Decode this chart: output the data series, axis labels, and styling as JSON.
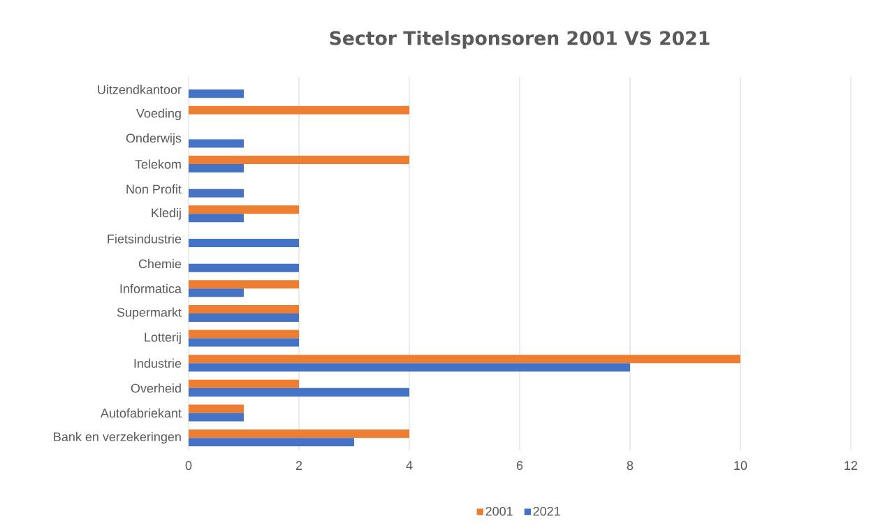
{
  "chart_data": {
    "type": "bar",
    "orientation": "horizontal",
    "title": "Sector Titelsponsoren 2001 VS 2021",
    "categories": [
      "Uitzendkantoor",
      "Voeding",
      "Onderwijs",
      "Telekom",
      "Non Profit",
      "Kledij",
      "Fietsindustrie",
      "Chemie",
      "Informatica",
      "Supermarkt",
      "Lotterij",
      "Industrie",
      "Overheid",
      "Autofabriekant",
      "Bank en verzekeringen"
    ],
    "series": [
      {
        "name": "2001",
        "color": "#ed7d31",
        "values": [
          null,
          4,
          null,
          4,
          null,
          2,
          null,
          null,
          2,
          2,
          2,
          10,
          2,
          1,
          4
        ]
      },
      {
        "name": "2021",
        "color": "#4472c4",
        "values": [
          1,
          null,
          1,
          1,
          1,
          1,
          2,
          2,
          1,
          2,
          2,
          8,
          4,
          1,
          3
        ]
      }
    ],
    "xlim": [
      0,
      12
    ],
    "xticks": [
      0,
      2,
      4,
      6,
      8,
      10,
      12
    ],
    "grid": "x",
    "legend": "bottom"
  }
}
